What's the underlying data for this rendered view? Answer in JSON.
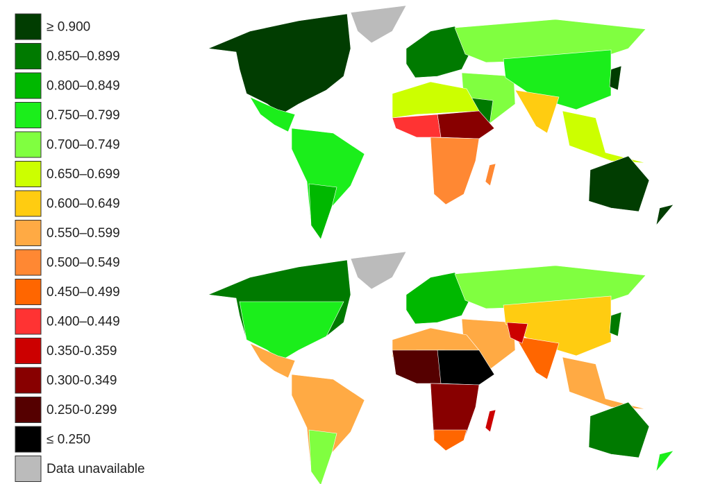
{
  "legend": [
    {
      "label": "≥ 0.900",
      "color": "#013d01"
    },
    {
      "label": "0.850–0.899",
      "color": "#007a00"
    },
    {
      "label": "0.800–0.849",
      "color": "#00b800"
    },
    {
      "label": "0.750–0.799",
      "color": "#1bee1b"
    },
    {
      "label": "0.700–0.749",
      "color": "#80ff40"
    },
    {
      "label": "0.650–0.699",
      "color": "#ccff00"
    },
    {
      "label": "0.600–0.649",
      "color": "#ffcc11"
    },
    {
      "label": "0.550–0.599",
      "color": "#ffaa44"
    },
    {
      "label": "0.500–0.549",
      "color": "#ff8833"
    },
    {
      "label": "0.450–0.499",
      "color": "#ff6600"
    },
    {
      "label": "0.400–0.449",
      "color": "#ff3333"
    },
    {
      "label": "0.350-0.359",
      "color": "#cc0000"
    },
    {
      "label": "0.300-0.349",
      "color": "#880000"
    },
    {
      "label": "0.250-0.299",
      "color": "#550000"
    },
    {
      "label": "≤ 0.250",
      "color": "#000000"
    },
    {
      "label": "Data unavailable",
      "color": "#bbbbbb"
    }
  ]
}
